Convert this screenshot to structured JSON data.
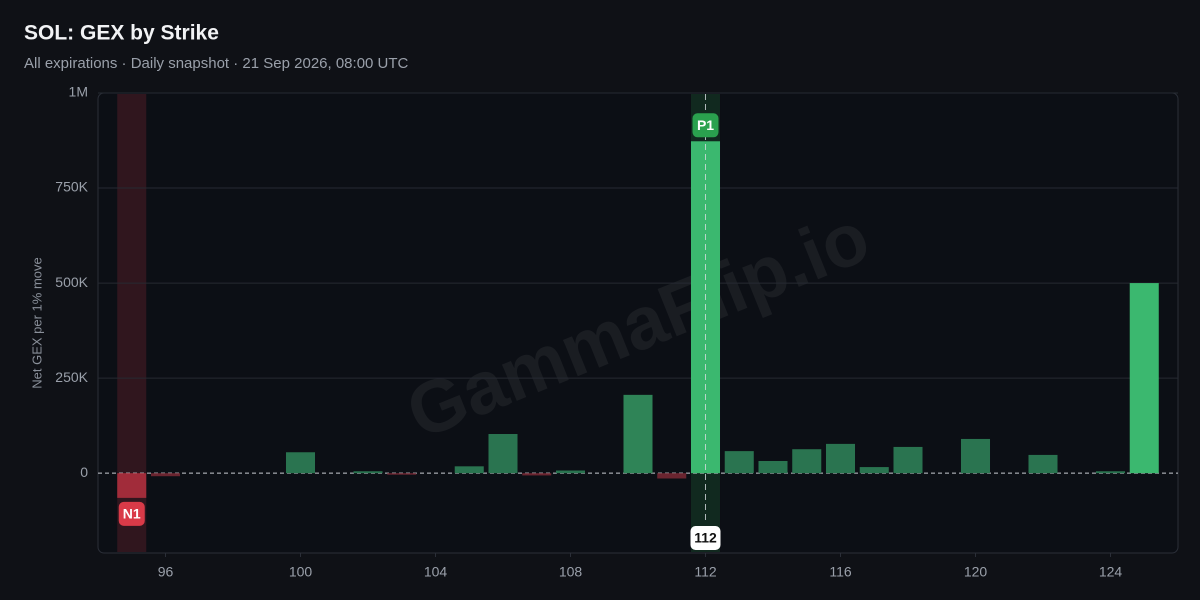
{
  "chart_data": {
    "type": "bar",
    "title": "SOL: GEX by Strike",
    "subtitle": "All expirations · Daily snapshot · 21 Sep 2026, 08:00 UTC",
    "y_label": "Net GEX per 1% move",
    "watermark": "GammaFlip.io",
    "x": [
      95,
      96,
      97,
      98,
      99,
      100,
      101,
      102,
      103,
      104,
      105,
      106,
      107,
      108,
      109,
      110,
      111,
      112,
      113,
      114,
      115,
      116,
      117,
      118,
      119,
      120,
      121,
      122,
      123,
      124,
      125
    ],
    "values": [
      -65000,
      -8000,
      0,
      0,
      0,
      55000,
      0,
      5000,
      -4000,
      0,
      18000,
      103000,
      -6000,
      7000,
      0,
      206000,
      -14000,
      873000,
      58000,
      32000,
      63000,
      77000,
      16000,
      69000,
      0,
      90000,
      0,
      48000,
      0,
      5000,
      500000
    ],
    "colors": [
      "#a12c3a",
      "#6b2530",
      "#256b48",
      "#256b48",
      "#256b48",
      "#2a7450",
      "#256b48",
      "#2a7450",
      "#6b2530",
      "#256b48",
      "#2a7450",
      "#2a7450",
      "#6b2530",
      "#2a7450",
      "#256b48",
      "#2f8457",
      "#6b2530",
      "#3bb86f",
      "#2a7450",
      "#2a7450",
      "#2a7450",
      "#2a7450",
      "#2a7450",
      "#2a7450",
      "#256b48",
      "#2a7450",
      "#256b48",
      "#2a7450",
      "#256b48",
      "#2a7450",
      "#3bb86f"
    ],
    "xlim": [
      94,
      126
    ],
    "xticks": [
      96,
      100,
      104,
      108,
      112,
      116,
      120,
      124
    ],
    "ylim": [
      -210000,
      1000000
    ],
    "yticks": [
      0,
      {
        "value": 250000,
        "label": "250K"
      },
      {
        "value": 500000,
        "label": "500K"
      },
      {
        "value": 750000,
        "label": "750K"
      },
      {
        "value": 1000000,
        "label": "1M"
      }
    ],
    "grid": true,
    "markers": [
      {
        "label": "N1",
        "x": 95,
        "color": "#d93a48"
      },
      {
        "label": "P1",
        "x": 112,
        "color": "#2aa14e"
      }
    ],
    "spot": 112
  }
}
